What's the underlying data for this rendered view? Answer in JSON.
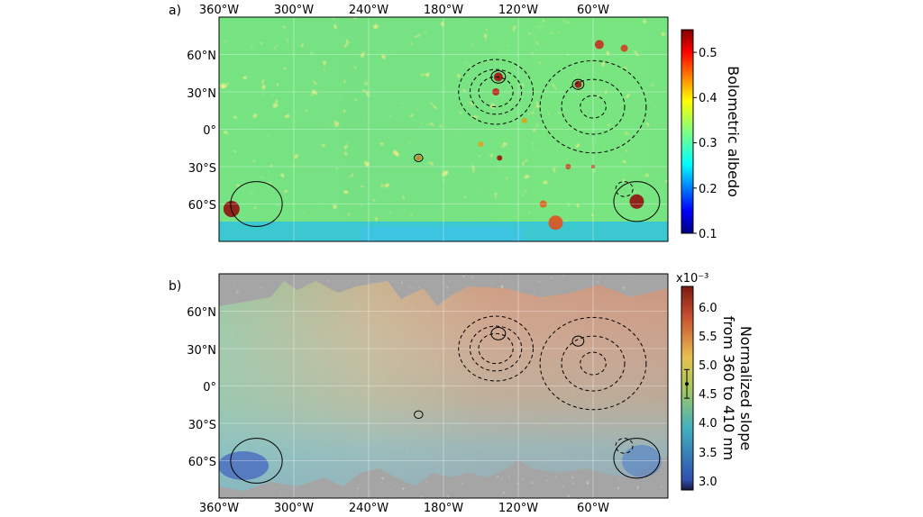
{
  "chart_data": [
    {
      "type": "heatmap",
      "panel_label": "a)",
      "title": "",
      "xlabel": "",
      "ylabel": "",
      "x_ticks": [
        "360°W",
        "300°W",
        "240°W",
        "180°W",
        "120°W",
        "60°W"
      ],
      "y_ticks": [
        "60°N",
        "30°N",
        "0°",
        "30°S",
        "60°S"
      ],
      "x_tick_values": [
        360,
        300,
        240,
        180,
        120,
        60
      ],
      "y_tick_values": [
        60,
        30,
        0,
        -30,
        -60
      ],
      "xlim": [
        360,
        0
      ],
      "ylim": [
        -90,
        90
      ],
      "grid": true,
      "colorbar": {
        "label": "Bolometric albedo",
        "ticks": [
          "0.1",
          "0.2",
          "0.3",
          "0.4",
          "0.5"
        ],
        "tick_values": [
          0.1,
          0.2,
          0.3,
          0.4,
          0.5
        ],
        "range": [
          0.1,
          0.55
        ],
        "multiplier": ""
      },
      "colormap": "jet",
      "contours": [
        {
          "style": "dashed",
          "center_lon": 138,
          "center_lat": 30,
          "levels_deg": [
            12,
            18,
            26
          ]
        },
        {
          "style": "dashed",
          "center_lon": 60,
          "center_lat": 18,
          "levels_deg": [
            9,
            22,
            37
          ]
        },
        {
          "style": "dashed",
          "center_lon": 35,
          "center_lat": -48,
          "levels_deg": [
            6
          ]
        },
        {
          "style": "solid",
          "center_lon": 136,
          "center_lat": 42,
          "levels_deg": [
            5
          ]
        },
        {
          "style": "solid",
          "center_lon": 72,
          "center_lat": 36,
          "levels_deg": [
            4
          ]
        },
        {
          "style": "solid",
          "center_lon": 200,
          "center_lat": -23,
          "levels_deg": [
            3
          ]
        },
        {
          "style": "solid",
          "center_lon": 330,
          "center_lat": -60,
          "levels_deg": [
            18
          ]
        },
        {
          "style": "solid",
          "center_lon": 25,
          "center_lat": -58,
          "levels_deg": [
            16
          ]
        }
      ]
    },
    {
      "type": "heatmap",
      "panel_label": "b)",
      "title": "",
      "xlabel": "",
      "ylabel": "",
      "x_ticks": [
        "360°W",
        "300°W",
        "240°W",
        "180°W",
        "120°W",
        "60°W"
      ],
      "y_ticks": [
        "60°N",
        "30°N",
        "0°",
        "30°S",
        "60°S"
      ],
      "x_tick_values": [
        360,
        300,
        240,
        180,
        120,
        60
      ],
      "y_tick_values": [
        60,
        30,
        0,
        -30,
        -60
      ],
      "xlim": [
        360,
        0
      ],
      "ylim": [
        -90,
        90
      ],
      "grid": true,
      "colorbar": {
        "label_line1": "Normalized slope",
        "label_line2": "from 360 to 410 nm",
        "ticks": [
          "3.0",
          "3.5",
          "4.0",
          "4.5",
          "5.0",
          "5.5",
          "6.0"
        ],
        "tick_values": [
          3.0,
          3.5,
          4.0,
          4.5,
          5.0,
          5.5,
          6.0
        ],
        "range": [
          2.8,
          6.35
        ],
        "multiplier": "x10⁻³",
        "error_marker": {
          "value": 4.65,
          "error": 0.25
        }
      },
      "colormap": "jet",
      "contours": [
        {
          "style": "dashed",
          "center_lon": 138,
          "center_lat": 30,
          "levels_deg": [
            12,
            18,
            26
          ]
        },
        {
          "style": "dashed",
          "center_lon": 60,
          "center_lat": 18,
          "levels_deg": [
            9,
            22,
            37
          ]
        },
        {
          "style": "dashed",
          "center_lon": 35,
          "center_lat": -48,
          "levels_deg": [
            6
          ]
        },
        {
          "style": "solid",
          "center_lon": 136,
          "center_lat": 42,
          "levels_deg": [
            5
          ]
        },
        {
          "style": "solid",
          "center_lon": 72,
          "center_lat": 36,
          "levels_deg": [
            4
          ]
        },
        {
          "style": "solid",
          "center_lon": 200,
          "center_lat": -23,
          "levels_deg": [
            3
          ]
        },
        {
          "style": "solid",
          "center_lon": 330,
          "center_lat": -60,
          "levels_deg": [
            18
          ]
        },
        {
          "style": "solid",
          "center_lon": 25,
          "center_lat": -58,
          "levels_deg": [
            16
          ]
        }
      ]
    }
  ]
}
